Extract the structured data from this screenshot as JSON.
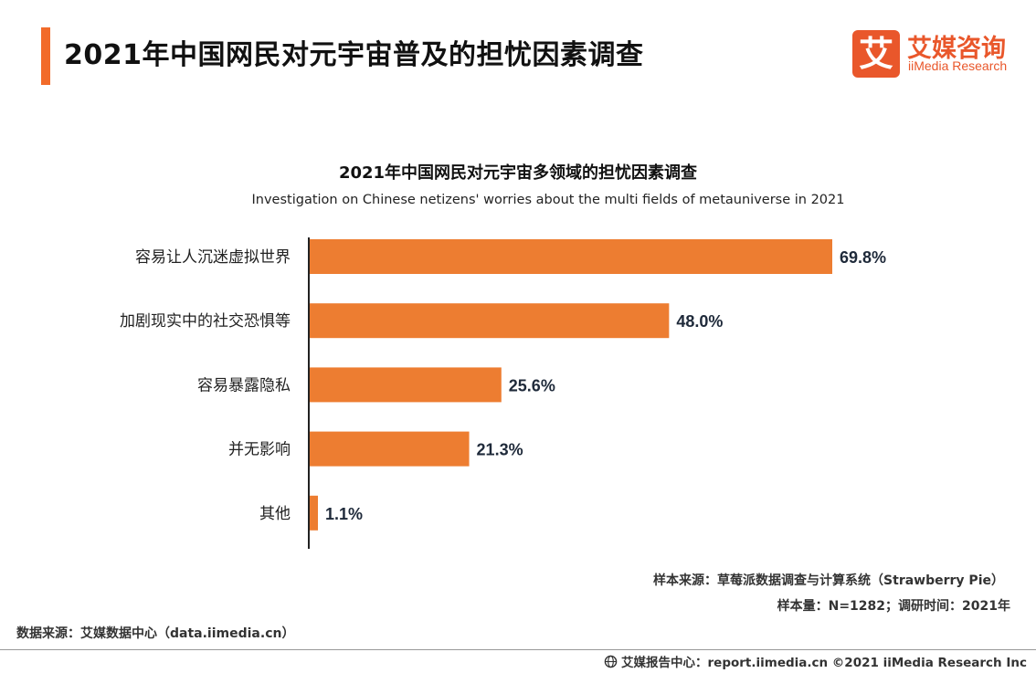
{
  "header": {
    "title": "2021年中国网民对元宇宙普及的担忧因素调查",
    "logo_icon_char": "艾",
    "logo_cn": "艾媒咨询",
    "logo_en": "iiMedia Research"
  },
  "chart_data": {
    "type": "bar",
    "orientation": "horizontal",
    "title": "2021年中国网民对元宇宙多领域的担忧因素调查",
    "subtitle": "Investigation on Chinese netizens' worries about the multi fields of metauniverse in 2021",
    "categories": [
      "容易让人沉迷虚拟世界",
      "加剧现实中的社交恐惧等",
      "容易暴露隐私",
      "并无影响",
      "其他"
    ],
    "values": [
      69.8,
      48.0,
      25.6,
      21.3,
      1.1
    ],
    "value_labels": [
      "69.8%",
      "48.0%",
      "25.6%",
      "21.3%",
      "1.1%"
    ],
    "xlim": [
      0,
      69.8
    ],
    "bar_color": "#ed7d31",
    "grid": false
  },
  "sources": {
    "sample_source": "样本来源：草莓派数据调查与计算系统（Strawberry Pie）",
    "sample_info": "样本量：N=1282；调研时间：2021年",
    "data_source": "数据来源：艾媒数据中心（data.iimedia.cn）"
  },
  "footer": {
    "text": "艾媒报告中心：report.iimedia.cn  ©2021  iiMedia Research  Inc"
  }
}
